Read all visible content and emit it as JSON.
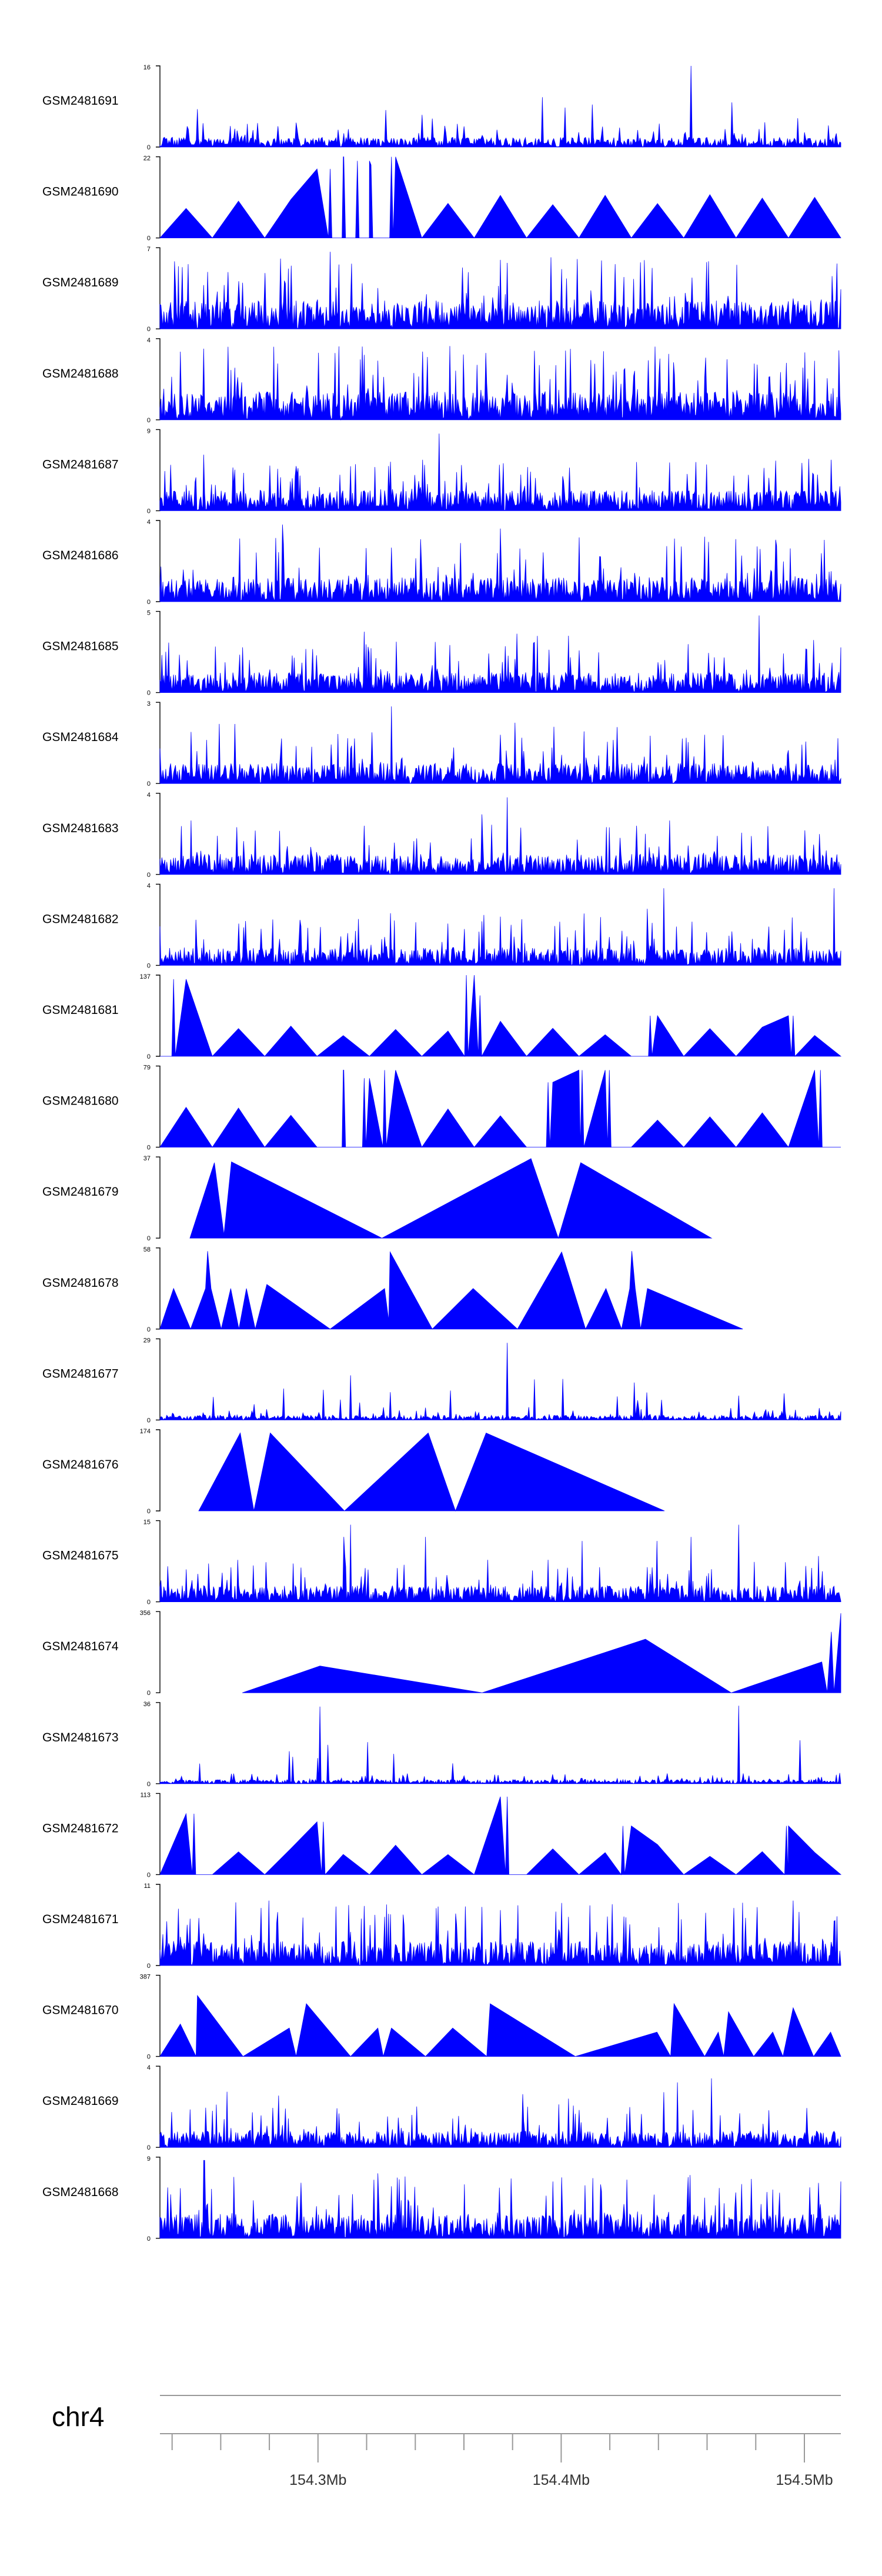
{
  "chart_data": {
    "type": "area",
    "title": "",
    "track_color": "#0000ff",
    "axis_color": "#000000",
    "genome_line_color": "#999999",
    "x_range_mb": [
      154.235,
      154.515
    ],
    "chromosome": "chr4",
    "tick_labels": [
      {
        "label": "154.3Mb",
        "mb": 154.3
      },
      {
        "label": "154.4Mb",
        "mb": 154.4
      },
      {
        "label": "154.5Mb",
        "mb": 154.5
      }
    ],
    "tracks": [
      {
        "name": "GSM2481691",
        "ymax": "16",
        "yzero": "0",
        "max": 16,
        "style": "spiky",
        "base": 0.12,
        "density": 1.0,
        "peaks": [
          [
            0.78,
            1.0
          ],
          [
            0.84,
            0.55
          ],
          [
            0.4,
            0.35
          ],
          [
            0.2,
            0.3
          ]
        ],
        "seed": 11
      },
      {
        "name": "GSM2481690",
        "ymax": "22",
        "yzero": "0",
        "max": 22,
        "style": "triangles",
        "base": 0.5,
        "density": 0.8,
        "peaks": [
          [
            0.27,
            1.0
          ],
          [
            0.34,
            1.0
          ],
          [
            0.29,
            0.95
          ],
          [
            0.31,
            0.9
          ],
          [
            0.25,
            0.85
          ]
        ],
        "seed": 12
      },
      {
        "name": "GSM2481689",
        "ymax": "7",
        "yzero": "0",
        "max": 7,
        "style": "dense",
        "base": 0.35,
        "density": 1.0,
        "peaks": [
          [
            0.25,
            0.95
          ],
          [
            0.5,
            0.85
          ],
          [
            0.1,
            0.7
          ]
        ],
        "seed": 13
      },
      {
        "name": "GSM2481688",
        "ymax": "4",
        "yzero": "0",
        "max": 4,
        "style": "dense",
        "base": 0.35,
        "density": 1.0,
        "peaks": [
          [
            0.1,
            0.9
          ],
          [
            0.55,
            0.85
          ],
          [
            0.3,
            0.8
          ]
        ],
        "seed": 14
      },
      {
        "name": "GSM2481687",
        "ymax": "9",
        "yzero": "0",
        "max": 9,
        "style": "dense",
        "base": 0.25,
        "density": 1.0,
        "peaks": [
          [
            0.41,
            0.95
          ],
          [
            0.7,
            0.6
          ],
          [
            0.2,
            0.55
          ]
        ],
        "seed": 15
      },
      {
        "name": "GSM2481686",
        "ymax": "4",
        "yzero": "0",
        "max": 4,
        "style": "dense",
        "base": 0.3,
        "density": 1.0,
        "peaks": [
          [
            0.18,
            0.95
          ],
          [
            0.5,
            0.9
          ],
          [
            0.8,
            0.8
          ]
        ],
        "seed": 16
      },
      {
        "name": "GSM2481685",
        "ymax": "5",
        "yzero": "0",
        "max": 5,
        "style": "dense",
        "base": 0.25,
        "density": 1.0,
        "peaks": [
          [
            0.88,
            0.95
          ],
          [
            0.3,
            0.75
          ],
          [
            0.6,
            0.7
          ]
        ],
        "seed": 17
      },
      {
        "name": "GSM2481684",
        "ymax": "3",
        "yzero": "0",
        "max": 3,
        "style": "dense",
        "base": 0.25,
        "density": 1.0,
        "peaks": [
          [
            0.34,
            0.95
          ],
          [
            0.5,
            0.6
          ],
          [
            0.8,
            0.6
          ]
        ],
        "seed": 18
      },
      {
        "name": "GSM2481683",
        "ymax": "4",
        "yzero": "0",
        "max": 4,
        "style": "dense",
        "base": 0.25,
        "density": 1.0,
        "peaks": [
          [
            0.51,
            0.95
          ],
          [
            0.3,
            0.6
          ],
          [
            0.7,
            0.6
          ]
        ],
        "seed": 19
      },
      {
        "name": "GSM2481682",
        "ymax": "4",
        "yzero": "0",
        "max": 4,
        "style": "dense",
        "base": 0.22,
        "density": 1.0,
        "peaks": [
          [
            0.74,
            0.95
          ],
          [
            0.99,
            0.95
          ],
          [
            0.5,
            0.6
          ]
        ],
        "seed": 20
      },
      {
        "name": "GSM2481681",
        "ymax": "137",
        "yzero": "0",
        "max": 137,
        "style": "triangles",
        "base": 0.4,
        "density": 0.25,
        "peaks": [
          [
            0.02,
            0.95
          ],
          [
            0.45,
            1.0
          ],
          [
            0.47,
            0.75
          ],
          [
            0.72,
            0.5
          ],
          [
            0.93,
            0.5
          ]
        ],
        "seed": 21
      },
      {
        "name": "GSM2481680",
        "ymax": "79",
        "yzero": "0",
        "max": 79,
        "style": "triangles",
        "base": 0.45,
        "density": 0.55,
        "peaks": [
          [
            0.27,
            0.95
          ],
          [
            0.33,
            0.95
          ],
          [
            0.62,
            0.95
          ],
          [
            0.66,
            0.95
          ],
          [
            0.97,
            0.95
          ],
          [
            0.3,
            0.85
          ],
          [
            0.57,
            0.8
          ]
        ],
        "seed": 22
      },
      {
        "name": "GSM2481679",
        "ymax": "37",
        "yzero": "0",
        "max": 37,
        "style": "explicit",
        "pts": [
          [
            0.044,
            0
          ],
          [
            0.08,
            0.93
          ],
          [
            0.094,
            0.04
          ],
          [
            0.105,
            0.94
          ],
          [
            0.326,
            0.0
          ],
          [
            0.545,
            0.98
          ],
          [
            0.585,
            0.0
          ],
          [
            0.618,
            0.93
          ],
          [
            0.81,
            0.0
          ]
        ],
        "seed": 23
      },
      {
        "name": "GSM2481678",
        "ymax": "58",
        "yzero": "0",
        "max": 58,
        "style": "explicit",
        "pts": [
          [
            0.0,
            0
          ],
          [
            0.02,
            0.5
          ],
          [
            0.045,
            0.0
          ],
          [
            0.067,
            0.5
          ],
          [
            0.07,
            0.96
          ],
          [
            0.075,
            0.5
          ],
          [
            0.09,
            0.0
          ],
          [
            0.104,
            0.5
          ],
          [
            0.116,
            0.0
          ],
          [
            0.127,
            0.5
          ],
          [
            0.14,
            0.0
          ],
          [
            0.157,
            0.55
          ],
          [
            0.25,
            0.0
          ],
          [
            0.33,
            0.5
          ],
          [
            0.336,
            0.1
          ],
          [
            0.338,
            0.95
          ],
          [
            0.4,
            0.0
          ],
          [
            0.46,
            0.5
          ],
          [
            0.525,
            0.0
          ],
          [
            0.59,
            0.95
          ],
          [
            0.625,
            0.0
          ],
          [
            0.655,
            0.5
          ],
          [
            0.678,
            0.0
          ],
          [
            0.69,
            0.5
          ],
          [
            0.693,
            0.96
          ],
          [
            0.698,
            0.5
          ],
          [
            0.706,
            0.0
          ],
          [
            0.716,
            0.5
          ],
          [
            0.856,
            0.0
          ]
        ],
        "seed": 24
      },
      {
        "name": "GSM2481677",
        "ymax": "29",
        "yzero": "0",
        "max": 29,
        "style": "spiky",
        "base": 0.06,
        "density": 1.0,
        "peaks": [
          [
            0.51,
            0.95
          ],
          [
            0.28,
            0.55
          ],
          [
            0.55,
            0.5
          ],
          [
            0.85,
            0.3
          ]
        ],
        "seed": 25
      },
      {
        "name": "GSM2481676",
        "ymax": "174",
        "yzero": "0",
        "max": 174,
        "style": "explicit",
        "pts": [
          [
            0.057,
            0
          ],
          [
            0.118,
            0.96
          ],
          [
            0.138,
            0.0
          ],
          [
            0.162,
            0.96
          ],
          [
            0.271,
            0.0
          ],
          [
            0.394,
            0.96
          ],
          [
            0.434,
            0.0
          ],
          [
            0.479,
            0.96
          ],
          [
            0.741,
            0.0
          ]
        ],
        "seed": 26
      },
      {
        "name": "GSM2481675",
        "ymax": "15",
        "yzero": "0",
        "max": 15,
        "style": "dense",
        "base": 0.2,
        "density": 1.0,
        "peaks": [
          [
            0.28,
            0.95
          ],
          [
            0.27,
            0.8
          ],
          [
            0.39,
            0.8
          ],
          [
            0.62,
            0.75
          ],
          [
            0.73,
            0.75
          ],
          [
            0.78,
            0.8
          ],
          [
            0.85,
            0.95
          ]
        ],
        "seed": 27
      },
      {
        "name": "GSM2481674",
        "ymax": "356",
        "yzero": "0",
        "max": 356,
        "style": "explicit",
        "pts": [
          [
            0.121,
            0
          ],
          [
            0.235,
            0.33
          ],
          [
            0.473,
            0.0
          ],
          [
            0.713,
            0.66
          ],
          [
            0.839,
            0.0
          ],
          [
            0.972,
            0.38
          ],
          [
            0.98,
            0.0
          ],
          [
            0.986,
            0.75
          ],
          [
            0.99,
            0.0
          ],
          [
            1.0,
            0.98
          ]
        ],
        "seed": 28
      },
      {
        "name": "GSM2481673",
        "ymax": "36",
        "yzero": "0",
        "max": 36,
        "style": "spiky",
        "base": 0.05,
        "density": 1.0,
        "peaks": [
          [
            0.235,
            0.95
          ],
          [
            0.85,
            0.96
          ],
          [
            0.19,
            0.4
          ],
          [
            0.43,
            0.25
          ]
        ],
        "seed": 29
      },
      {
        "name": "GSM2481672",
        "ymax": "113",
        "yzero": "0",
        "max": 113,
        "style": "triangles",
        "base": 0.35,
        "density": 0.55,
        "peaks": [
          [
            0.05,
            0.75
          ],
          [
            0.24,
            0.65
          ],
          [
            0.51,
            0.96
          ],
          [
            0.68,
            0.6
          ],
          [
            0.92,
            0.6
          ]
        ],
        "seed": 30
      },
      {
        "name": "GSM2481671",
        "ymax": "11",
        "yzero": "0",
        "max": 11,
        "style": "dense",
        "base": 0.3,
        "density": 1.0,
        "peaks": [
          [
            0.16,
            0.8
          ],
          [
            0.33,
            0.6
          ],
          [
            0.6,
            0.6
          ],
          [
            0.93,
            0.8
          ]
        ],
        "seed": 31
      },
      {
        "name": "GSM2481670",
        "ymax": "387",
        "yzero": "0",
        "max": 387,
        "style": "explicit",
        "pts": [
          [
            0.0,
            0
          ],
          [
            0.03,
            0.4
          ],
          [
            0.053,
            0.0
          ],
          [
            0.055,
            0.75
          ],
          [
            0.122,
            0.0
          ],
          [
            0.19,
            0.35
          ],
          [
            0.2,
            0.0
          ],
          [
            0.215,
            0.65
          ],
          [
            0.28,
            0.0
          ],
          [
            0.32,
            0.35
          ],
          [
            0.328,
            0.0
          ],
          [
            0.34,
            0.35
          ],
          [
            0.39,
            0.0
          ],
          [
            0.43,
            0.35
          ],
          [
            0.48,
            0.0
          ],
          [
            0.485,
            0.65
          ],
          [
            0.61,
            0.0
          ],
          [
            0.73,
            0.3
          ],
          [
            0.75,
            0.0
          ],
          [
            0.755,
            0.65
          ],
          [
            0.8,
            0.0
          ],
          [
            0.82,
            0.3
          ],
          [
            0.828,
            0.0
          ],
          [
            0.835,
            0.55
          ],
          [
            0.872,
            0.0
          ],
          [
            0.9,
            0.3
          ],
          [
            0.915,
            0.0
          ],
          [
            0.93,
            0.6
          ],
          [
            0.96,
            0.0
          ],
          [
            0.985,
            0.3
          ],
          [
            1.0,
            0.0
          ]
        ],
        "seed": 32
      },
      {
        "name": "GSM2481669",
        "ymax": "4",
        "yzero": "0",
        "max": 4,
        "style": "dense",
        "base": 0.2,
        "density": 1.0,
        "peaks": [
          [
            0.76,
            0.8
          ],
          [
            0.81,
            0.85
          ],
          [
            0.6,
            0.6
          ]
        ],
        "seed": 33
      },
      {
        "name": "GSM2481668",
        "ymax": "9",
        "yzero": "0",
        "max": 9,
        "style": "dense",
        "base": 0.3,
        "density": 1.0,
        "peaks": [
          [
            0.065,
            0.96
          ],
          [
            0.32,
            0.8
          ],
          [
            0.59,
            0.75
          ],
          [
            0.9,
            0.6
          ]
        ],
        "seed": 34
      }
    ]
  }
}
